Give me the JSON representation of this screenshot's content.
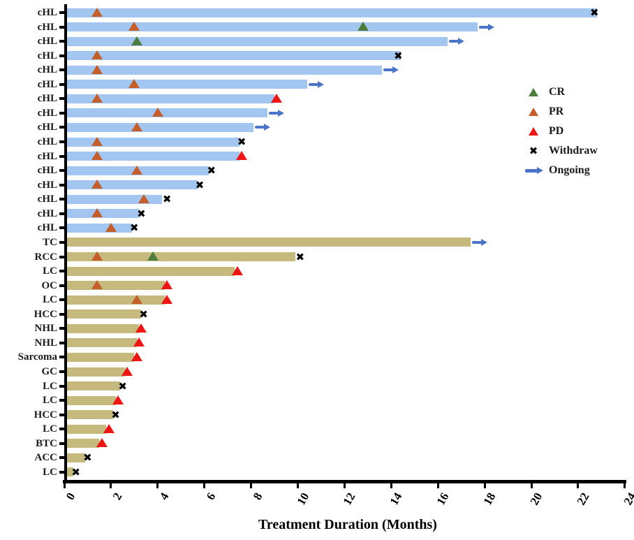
{
  "chart_data": {
    "type": "bar",
    "variant": "horizontal-swimmer-plot",
    "title": "",
    "xlabel": "Treatment Duration (Months)",
    "ylabel": "",
    "xlim": [
      0,
      24
    ],
    "xticks": [
      0,
      2,
      4,
      6,
      8,
      10,
      12,
      14,
      16,
      18,
      20,
      22,
      24
    ],
    "grid": false,
    "legend_position": "right-upper",
    "legend": [
      {
        "label": "CR",
        "marker": "triangle",
        "color": "#4e7d3c"
      },
      {
        "label": "PR",
        "marker": "triangle",
        "color": "#c45f2b"
      },
      {
        "label": "PD",
        "marker": "triangle",
        "color": "#ee1515"
      },
      {
        "label": "Withdraw",
        "marker": "cross",
        "color": "#000000"
      },
      {
        "label": "Ongoing",
        "marker": "arrow",
        "color": "#4a74c8"
      }
    ],
    "colors": {
      "bar_cHL": "#a3c6f0",
      "bar_other": "#c5b97e",
      "cr": "#4e7d3c",
      "pr": "#c45f2b",
      "pd": "#ee1515",
      "withdraw": "#000000",
      "ongoing": "#4a74c8",
      "axis": "#000000"
    },
    "rows": [
      {
        "label": "cHL",
        "group": "cHL",
        "duration": 22.8,
        "markers": [
          {
            "type": "PR",
            "x": 1.4
          }
        ],
        "end": {
          "type": "Withdraw",
          "x": 22.7
        }
      },
      {
        "label": "cHL",
        "group": "cHL",
        "duration": 17.7,
        "markers": [
          {
            "type": "PR",
            "x": 3.0
          },
          {
            "type": "CR",
            "x": 12.8
          }
        ],
        "end": {
          "type": "Ongoing"
        }
      },
      {
        "label": "cHL",
        "group": "cHL",
        "duration": 16.4,
        "markers": [
          {
            "type": "CR",
            "x": 3.1
          }
        ],
        "end": {
          "type": "Ongoing"
        }
      },
      {
        "label": "cHL",
        "group": "cHL",
        "duration": 14.4,
        "markers": [
          {
            "type": "PR",
            "x": 1.4
          }
        ],
        "end": {
          "type": "Withdraw",
          "x": 14.3
        }
      },
      {
        "label": "cHL",
        "group": "cHL",
        "duration": 13.6,
        "markers": [
          {
            "type": "PR",
            "x": 1.4
          }
        ],
        "end": {
          "type": "Ongoing"
        }
      },
      {
        "label": "cHL",
        "group": "cHL",
        "duration": 10.4,
        "markers": [
          {
            "type": "PR",
            "x": 3.0
          }
        ],
        "end": {
          "type": "Ongoing"
        }
      },
      {
        "label": "cHL",
        "group": "cHL",
        "duration": 9.0,
        "markers": [
          {
            "type": "PR",
            "x": 1.4
          }
        ],
        "end": {
          "type": "PD",
          "x": 9.1
        }
      },
      {
        "label": "cHL",
        "group": "cHL",
        "duration": 8.7,
        "markers": [
          {
            "type": "PR",
            "x": 4.0
          }
        ],
        "end": {
          "type": "Ongoing"
        }
      },
      {
        "label": "cHL",
        "group": "cHL",
        "duration": 8.1,
        "markers": [
          {
            "type": "PR",
            "x": 3.1
          }
        ],
        "end": {
          "type": "Ongoing"
        }
      },
      {
        "label": "cHL",
        "group": "cHL",
        "duration": 7.5,
        "markers": [
          {
            "type": "PR",
            "x": 1.4
          }
        ],
        "end": {
          "type": "Withdraw",
          "x": 7.6
        }
      },
      {
        "label": "cHL",
        "group": "cHL",
        "duration": 7.5,
        "markers": [
          {
            "type": "PR",
            "x": 1.4
          }
        ],
        "end": {
          "type": "PD",
          "x": 7.6
        }
      },
      {
        "label": "cHL",
        "group": "cHL",
        "duration": 6.2,
        "markers": [
          {
            "type": "PR",
            "x": 3.1
          }
        ],
        "end": {
          "type": "Withdraw",
          "x": 6.3
        }
      },
      {
        "label": "cHL",
        "group": "cHL",
        "duration": 5.7,
        "markers": [
          {
            "type": "PR",
            "x": 1.4
          }
        ],
        "end": {
          "type": "Withdraw",
          "x": 5.8
        }
      },
      {
        "label": "cHL",
        "group": "cHL",
        "duration": 4.2,
        "markers": [
          {
            "type": "PR",
            "x": 3.4
          }
        ],
        "end": {
          "type": "Withdraw",
          "x": 4.4
        }
      },
      {
        "label": "cHL",
        "group": "cHL",
        "duration": 3.2,
        "markers": [
          {
            "type": "PR",
            "x": 1.4
          }
        ],
        "end": {
          "type": "Withdraw",
          "x": 3.3
        }
      },
      {
        "label": "cHL",
        "group": "cHL",
        "duration": 2.9,
        "markers": [
          {
            "type": "PR",
            "x": 2.0
          }
        ],
        "end": {
          "type": "Withdraw",
          "x": 3.0
        }
      },
      {
        "label": "TC",
        "group": "other",
        "duration": 17.4,
        "markers": [],
        "end": {
          "type": "Ongoing"
        }
      },
      {
        "label": "RCC",
        "group": "other",
        "duration": 9.9,
        "markers": [
          {
            "type": "PR",
            "x": 1.4
          },
          {
            "type": "CR",
            "x": 3.8
          }
        ],
        "end": {
          "type": "Withdraw",
          "x": 10.1
        }
      },
      {
        "label": "LC",
        "group": "other",
        "duration": 7.3,
        "markers": [],
        "end": {
          "type": "PD",
          "x": 7.4
        }
      },
      {
        "label": "OC",
        "group": "other",
        "duration": 4.3,
        "markers": [
          {
            "type": "PR",
            "x": 1.4
          }
        ],
        "end": {
          "type": "PD",
          "x": 4.4
        }
      },
      {
        "label": "LC",
        "group": "other",
        "duration": 4.3,
        "markers": [
          {
            "type": "PR",
            "x": 3.1
          }
        ],
        "end": {
          "type": "PD",
          "x": 4.4
        }
      },
      {
        "label": "HCC",
        "group": "other",
        "duration": 3.3,
        "markers": [],
        "end": {
          "type": "Withdraw",
          "x": 3.4
        }
      },
      {
        "label": "NHL",
        "group": "other",
        "duration": 3.2,
        "markers": [],
        "end": {
          "type": "PD",
          "x": 3.3
        }
      },
      {
        "label": "NHL",
        "group": "other",
        "duration": 3.1,
        "markers": [],
        "end": {
          "type": "PD",
          "x": 3.2
        }
      },
      {
        "label": "Sarcoma",
        "group": "other",
        "duration": 3.0,
        "markers": [],
        "end": {
          "type": "PD",
          "x": 3.1
        }
      },
      {
        "label": "GC",
        "group": "other",
        "duration": 2.6,
        "markers": [],
        "end": {
          "type": "PD",
          "x": 2.7
        }
      },
      {
        "label": "LC",
        "group": "other",
        "duration": 2.4,
        "markers": [],
        "end": {
          "type": "Withdraw",
          "x": 2.5
        }
      },
      {
        "label": "LC",
        "group": "other",
        "duration": 2.2,
        "markers": [],
        "end": {
          "type": "PD",
          "x": 2.3
        }
      },
      {
        "label": "HCC",
        "group": "other",
        "duration": 2.1,
        "markers": [],
        "end": {
          "type": "Withdraw",
          "x": 2.2
        }
      },
      {
        "label": "LC",
        "group": "other",
        "duration": 1.8,
        "markers": [],
        "end": {
          "type": "PD",
          "x": 1.9
        }
      },
      {
        "label": "BTC",
        "group": "other",
        "duration": 1.5,
        "markers": [],
        "end": {
          "type": "PD",
          "x": 1.6
        }
      },
      {
        "label": "ACC",
        "group": "other",
        "duration": 0.9,
        "markers": [],
        "end": {
          "type": "Withdraw",
          "x": 1.0
        }
      },
      {
        "label": "LC",
        "group": "other",
        "duration": 0.4,
        "markers": [],
        "end": {
          "type": "Withdraw",
          "x": 0.5
        }
      }
    ]
  }
}
